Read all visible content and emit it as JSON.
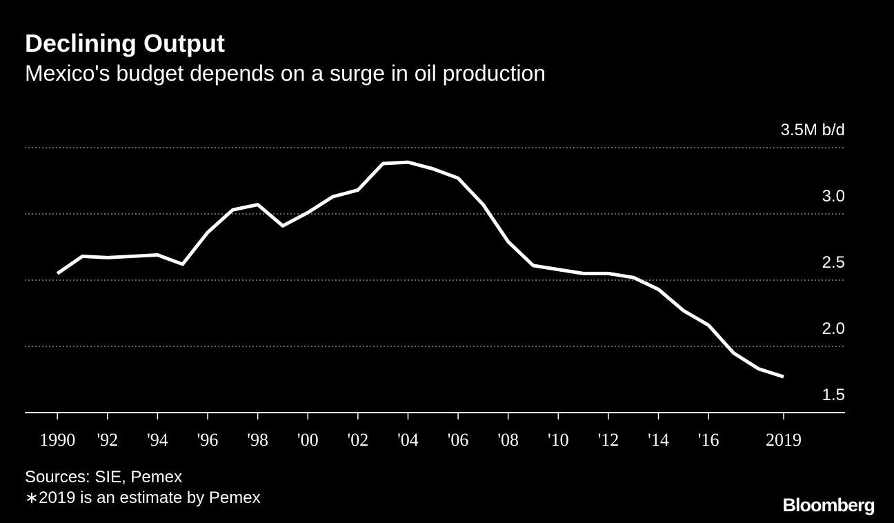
{
  "chart_data": {
    "type": "line",
    "title": "Declining Output",
    "subtitle": "Mexico's budget depends on a surge in oil production",
    "x": [
      1990,
      1991,
      1992,
      1993,
      1994,
      1995,
      1996,
      1997,
      1998,
      1999,
      2000,
      2001,
      2002,
      2003,
      2004,
      2005,
      2006,
      2007,
      2008,
      2009,
      2010,
      2011,
      2012,
      2013,
      2014,
      2015,
      2016,
      2017,
      2018,
      2019
    ],
    "series": [
      {
        "color": "#ffffff",
        "values": [
          2.55,
          2.68,
          2.67,
          2.68,
          2.69,
          2.62,
          2.86,
          3.03,
          3.07,
          2.91,
          3.01,
          3.13,
          3.18,
          3.38,
          3.39,
          3.34,
          3.27,
          3.07,
          2.79,
          2.61,
          2.58,
          2.55,
          2.55,
          2.52,
          2.43,
          2.27,
          2.16,
          1.95,
          1.83,
          1.77
        ]
      }
    ],
    "xlim": [
      1988.7,
      2021.45
    ],
    "xticks": [
      1990,
      {
        "value": 1992,
        "label": "'92"
      },
      {
        "value": 1994,
        "label": "'94"
      },
      {
        "value": 1996,
        "label": "'96"
      },
      {
        "value": 1998,
        "label": "'98"
      },
      {
        "value": 2000,
        "label": "'00"
      },
      {
        "value": 2002,
        "label": "'02"
      },
      {
        "value": 2004,
        "label": "'04"
      },
      {
        "value": 2006,
        "label": "'06"
      },
      {
        "value": 2008,
        "label": "'08"
      },
      {
        "value": 2010,
        "label": "'10"
      },
      {
        "value": 2012,
        "label": "'12"
      },
      {
        "value": 2014,
        "label": "'14"
      },
      {
        "value": 2016,
        "label": "'16"
      },
      2019
    ],
    "ylim": [
      1.5,
      3.5
    ],
    "yticks": [
      1.5,
      {
        "value": 2,
        "label": "2.0"
      },
      2.5,
      {
        "value": 3,
        "label": "3.0"
      },
      {
        "value": 3.5,
        "label": "3.5M b/d"
      }
    ],
    "grid": true,
    "notes": [
      "Sources: SIE, Pemex",
      "∗2019 is an estimate by Pemex"
    ],
    "brand": "Bloomberg"
  }
}
